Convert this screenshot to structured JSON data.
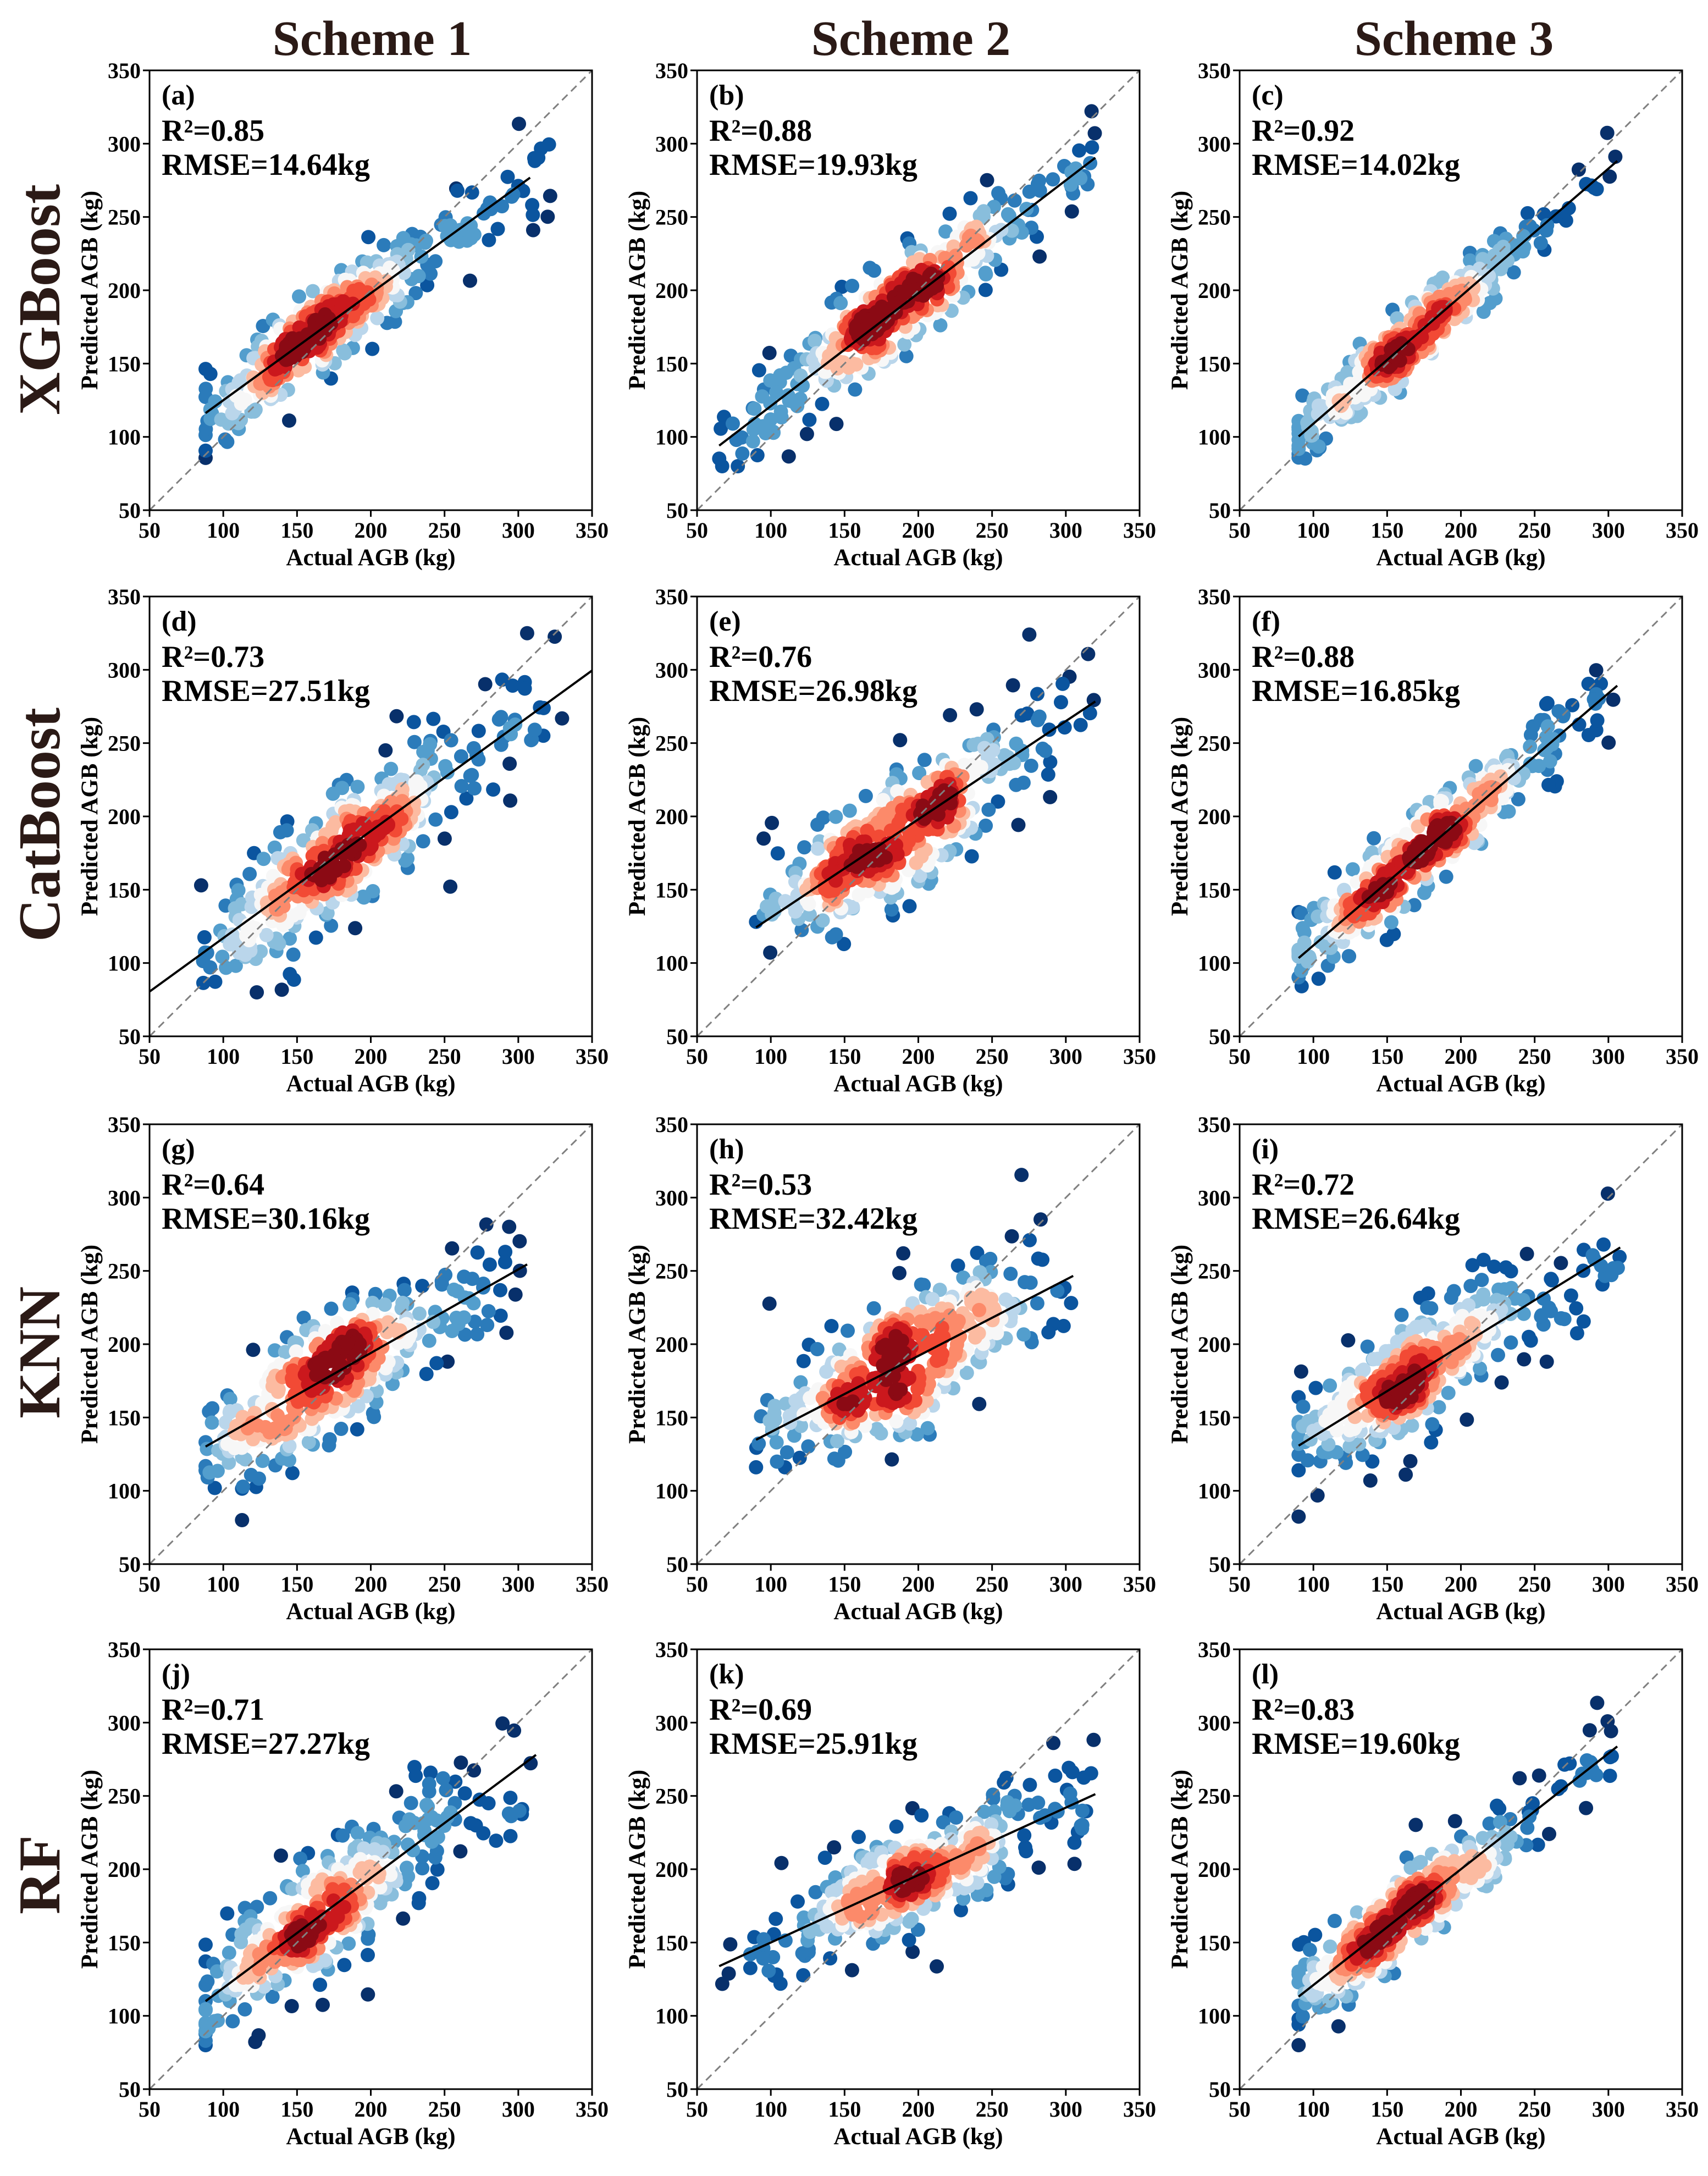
{
  "column_titles": [
    "Scheme 1",
    "Scheme 2",
    "Scheme 3"
  ],
  "row_titles": [
    "XGBoost",
    "CatBoost",
    "KNN",
    "RF"
  ],
  "colors": {
    "density_scale": [
      "#08306b",
      "#0b559f",
      "#2b7bba",
      "#539ecd",
      "#89bedc",
      "#bad6eb",
      "#f7f7f7",
      "#fcbba1",
      "#fc8a6a",
      "#f24a35",
      "#cb181d",
      "#8b0a14"
    ],
    "one_to_one_line": "#808080",
    "fit_line": "#000000",
    "title_color": "#2b1a16"
  },
  "chart_data": [
    {
      "type": "scatter",
      "label": "(a)",
      "model": "XGBoost",
      "scheme": "Scheme 1",
      "r2": "R²=0.85",
      "rmse": "RMSE=14.64kg",
      "xlabel": "Actual AGB (kg)",
      "ylabel": "Predicted AGB (kg)",
      "xlim": [
        50,
        350
      ],
      "ylim": [
        50,
        350
      ],
      "xticks": [
        50,
        100,
        150,
        200,
        250,
        300,
        350
      ],
      "yticks": [
        50,
        100,
        150,
        200,
        250,
        300,
        350
      ],
      "x_range": [
        88,
        322
      ],
      "fit": {
        "slope": 0.73,
        "intercept": 52,
        "x_range": [
          88,
          308
        ]
      },
      "spread": 14,
      "center": 170,
      "seed": 11
    },
    {
      "type": "scatter",
      "label": "(b)",
      "model": "XGBoost",
      "scheme": "Scheme 2",
      "r2": "R²=0.88",
      "rmse": "RMSE=19.93kg",
      "xlabel": "Actual AGB (kg)",
      "ylabel": "Predicted AGB (kg)",
      "xlim": [
        50,
        350
      ],
      "ylim": [
        50,
        350
      ],
      "xticks": [
        50,
        100,
        150,
        200,
        250,
        300,
        350
      ],
      "yticks": [
        50,
        100,
        150,
        200,
        250,
        300,
        350
      ],
      "x_range": [
        65,
        320
      ],
      "fit": {
        "slope": 0.77,
        "intercept": 44,
        "x_range": [
          65,
          320
        ]
      },
      "spread": 16,
      "center": 185,
      "seed": 23
    },
    {
      "type": "scatter",
      "label": "(c)",
      "model": "XGBoost",
      "scheme": "Scheme 3",
      "r2": "R²=0.92",
      "rmse": "RMSE=14.02kg",
      "xlabel": "Actual AGB (kg)",
      "ylabel": "Predicted AGB (kg)",
      "xlim": [
        50,
        350
      ],
      "ylim": [
        50,
        350
      ],
      "xticks": [
        50,
        100,
        150,
        200,
        250,
        300,
        350
      ],
      "yticks": [
        50,
        100,
        150,
        200,
        250,
        300,
        350
      ],
      "x_range": [
        90,
        308
      ],
      "fit": {
        "slope": 0.87,
        "intercept": 22,
        "x_range": [
          90,
          306
        ]
      },
      "spread": 11,
      "center": 165,
      "seed": 37
    },
    {
      "type": "scatter",
      "label": "(d)",
      "model": "CatBoost",
      "scheme": "Scheme 1",
      "r2": "R²=0.73",
      "rmse": "RMSE=27.51kg",
      "xlabel": "Actual AGB (kg)",
      "ylabel": "Predicted AGB (kg)",
      "xlim": [
        50,
        350
      ],
      "ylim": [
        50,
        350
      ],
      "xticks": [
        50,
        100,
        150,
        200,
        250,
        300,
        350
      ],
      "yticks": [
        50,
        100,
        150,
        200,
        250,
        300,
        350
      ],
      "x_range": [
        85,
        335
      ],
      "fit": {
        "slope": 0.73,
        "intercept": 44,
        "x_range": [
          50,
          350
        ]
      },
      "spread": 22,
      "center": 175,
      "seed": 41
    },
    {
      "type": "scatter",
      "label": "(e)",
      "model": "CatBoost",
      "scheme": "Scheme 2",
      "r2": "R²=0.76",
      "rmse": "RMSE=26.98kg",
      "xlabel": "Actual AGB (kg)",
      "ylabel": "Predicted AGB (kg)",
      "xlim": [
        50,
        350
      ],
      "ylim": [
        50,
        350
      ],
      "xticks": [
        50,
        100,
        150,
        200,
        250,
        300,
        350
      ],
      "yticks": [
        50,
        100,
        150,
        200,
        250,
        300,
        350
      ],
      "x_range": [
        90,
        320
      ],
      "fit": {
        "slope": 0.67,
        "intercept": 64,
        "x_range": [
          90,
          320
        ]
      },
      "spread": 22,
      "center": 185,
      "seed": 53
    },
    {
      "type": "scatter",
      "label": "(f)",
      "model": "CatBoost",
      "scheme": "Scheme 3",
      "r2": "R²=0.88",
      "rmse": "RMSE=16.85kg",
      "xlabel": "Actual AGB (kg)",
      "ylabel": "Predicted AGB (kg)",
      "xlim": [
        50,
        350
      ],
      "ylim": [
        50,
        350
      ],
      "xticks": [
        50,
        100,
        150,
        200,
        250,
        300,
        350
      ],
      "yticks": [
        50,
        100,
        150,
        200,
        250,
        300,
        350
      ],
      "x_range": [
        90,
        306
      ],
      "fit": {
        "slope": 0.86,
        "intercept": 26,
        "x_range": [
          90,
          306
        ]
      },
      "spread": 13,
      "center": 170,
      "seed": 67
    },
    {
      "type": "scatter",
      "label": "(g)",
      "model": "KNN",
      "scheme": "Scheme 1",
      "r2": "R²=0.64",
      "rmse": "RMSE=30.16kg",
      "xlabel": "Actual AGB (kg)",
      "ylabel": "Predicted AGB (kg)",
      "xlim": [
        50,
        350
      ],
      "ylim": [
        50,
        350
      ],
      "xticks": [
        50,
        100,
        150,
        200,
        250,
        300,
        350
      ],
      "yticks": [
        50,
        100,
        150,
        200,
        250,
        300,
        350
      ],
      "x_range": [
        88,
        306
      ],
      "fit": {
        "slope": 0.57,
        "intercept": 80,
        "x_range": [
          88,
          306
        ]
      },
      "spread": 20,
      "center": 170,
      "seed": 79
    },
    {
      "type": "scatter",
      "label": "(h)",
      "model": "KNN",
      "scheme": "Scheme 2",
      "r2": "R²=0.53",
      "rmse": "RMSE=32.42kg",
      "xlabel": "Actual AGB (kg)",
      "ylabel": "Predicted AGB (kg)",
      "xlim": [
        50,
        350
      ],
      "ylim": [
        50,
        350
      ],
      "xticks": [
        50,
        100,
        150,
        200,
        250,
        300,
        350
      ],
      "yticks": [
        50,
        100,
        150,
        200,
        250,
        300,
        350
      ],
      "x_range": [
        90,
        305
      ],
      "fit": {
        "slope": 0.52,
        "intercept": 88,
        "x_range": [
          90,
          305
        ]
      },
      "spread": 24,
      "center": 190,
      "seed": 83
    },
    {
      "type": "scatter",
      "label": "(i)",
      "model": "KNN",
      "scheme": "Scheme 3",
      "r2": "R²=0.72",
      "rmse": "RMSE=26.64kg",
      "xlabel": "Actual AGB (kg)",
      "ylabel": "Predicted AGB (kg)",
      "xlim": [
        50,
        350
      ],
      "ylim": [
        50,
        350
      ],
      "xticks": [
        50,
        100,
        150,
        200,
        250,
        300,
        350
      ],
      "yticks": [
        50,
        100,
        150,
        200,
        250,
        300,
        350
      ],
      "x_range": [
        90,
        308
      ],
      "fit": {
        "slope": 0.62,
        "intercept": 75,
        "x_range": [
          90,
          308
        ]
      },
      "spread": 20,
      "center": 165,
      "seed": 97
    },
    {
      "type": "scatter",
      "label": "(j)",
      "model": "RF",
      "scheme": "Scheme 1",
      "r2": "R²=0.71",
      "rmse": "RMSE=27.27kg",
      "xlabel": "Actual AGB (kg)",
      "ylabel": "Predicted AGB (kg)",
      "xlim": [
        50,
        350
      ],
      "ylim": [
        50,
        350
      ],
      "xticks": [
        50,
        100,
        150,
        200,
        250,
        300,
        350
      ],
      "yticks": [
        50,
        100,
        150,
        200,
        250,
        300,
        350
      ],
      "x_range": [
        88,
        312
      ],
      "fit": {
        "slope": 0.75,
        "intercept": 44,
        "x_range": [
          88,
          312
        ]
      },
      "spread": 20,
      "center": 165,
      "seed": 101
    },
    {
      "type": "scatter",
      "label": "(k)",
      "model": "RF",
      "scheme": "Scheme 2",
      "r2": "R²=0.69",
      "rmse": "RMSE=25.91kg",
      "xlabel": "Actual AGB (kg)",
      "ylabel": "Predicted AGB (kg)",
      "xlim": [
        50,
        350
      ],
      "ylim": [
        50,
        350
      ],
      "xticks": [
        50,
        100,
        150,
        200,
        250,
        300,
        350
      ],
      "yticks": [
        50,
        100,
        150,
        200,
        250,
        300,
        350
      ],
      "x_range": [
        65,
        320
      ],
      "fit": {
        "slope": 0.46,
        "intercept": 104,
        "x_range": [
          65,
          320
        ]
      },
      "spread": 17,
      "center": 190,
      "seed": 113
    },
    {
      "type": "scatter",
      "label": "(l)",
      "model": "RF",
      "scheme": "Scheme 3",
      "r2": "R²=0.83",
      "rmse": "RMSE=19.60kg",
      "xlabel": "Actual AGB (kg)",
      "ylabel": "Predicted AGB (kg)",
      "xlim": [
        50,
        350
      ],
      "ylim": [
        50,
        350
      ],
      "xticks": [
        50,
        100,
        150,
        200,
        250,
        300,
        350
      ],
      "yticks": [
        50,
        100,
        150,
        200,
        250,
        300,
        350
      ],
      "x_range": [
        90,
        306
      ],
      "fit": {
        "slope": 0.79,
        "intercept": 42,
        "x_range": [
          90,
          306
        ]
      },
      "spread": 15,
      "center": 160,
      "seed": 127
    }
  ]
}
